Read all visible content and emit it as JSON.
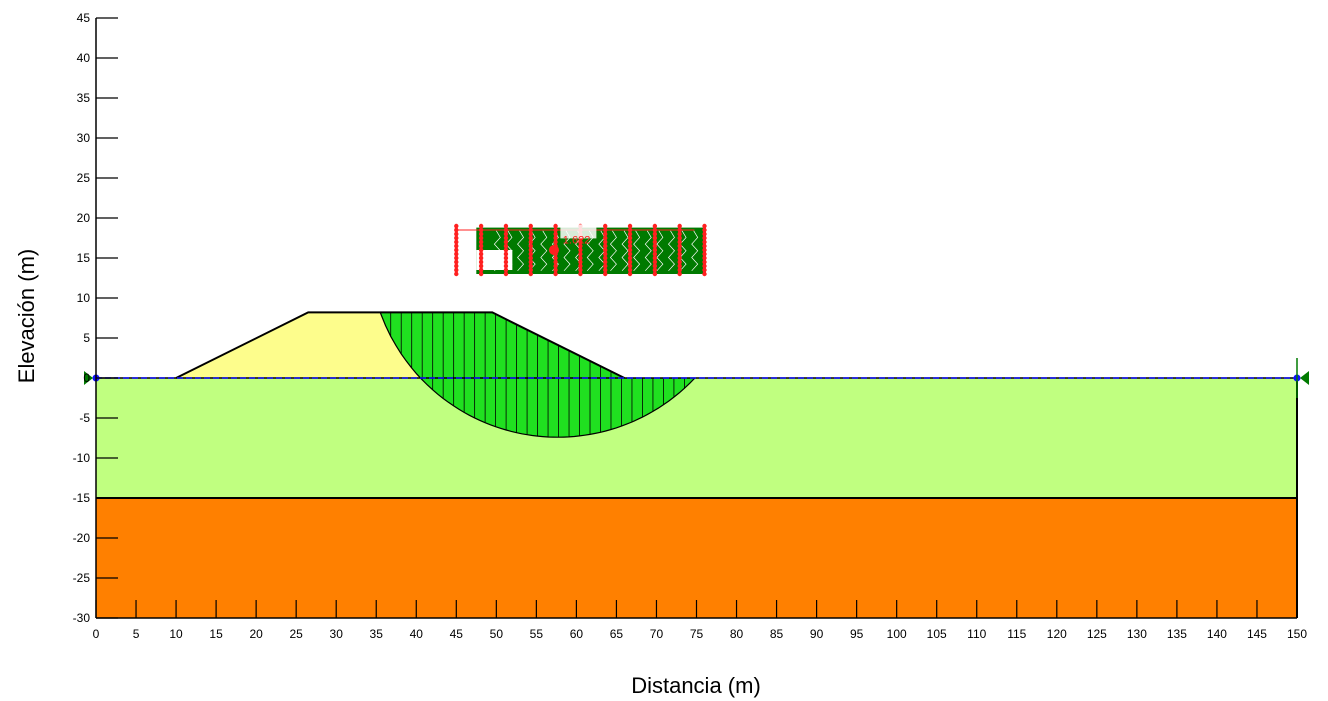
{
  "chart_data": {
    "type": "slope-stability-section",
    "xlabel": "Distancia (m)",
    "ylabel": "Elevación (m)",
    "xlim": [
      0,
      150
    ],
    "ylim": [
      -30,
      45
    ],
    "x_ticks": [
      0,
      5,
      10,
      15,
      20,
      25,
      30,
      35,
      40,
      45,
      50,
      55,
      60,
      65,
      70,
      75,
      80,
      85,
      90,
      95,
      100,
      105,
      110,
      115,
      120,
      125,
      130,
      135,
      140,
      145,
      150
    ],
    "y_ticks": [
      45,
      40,
      35,
      30,
      25,
      20,
      15,
      10,
      5,
      0,
      -5,
      -10,
      -15,
      -20,
      -25,
      -30
    ],
    "factor_of_safety": "1.622",
    "colors": {
      "embankment": "#fdfd8c",
      "upper_layer": "#c0ff80",
      "lower_layer": "#ff8000",
      "slip_mass": "#20e020",
      "grid_mark": "#ff2020",
      "contour": "#007a00",
      "water_table": "#1010ff",
      "boundary": "#000000"
    },
    "regions": [
      {
        "name": "embankment",
        "points": [
          [
            10,
            0
          ],
          [
            26.5,
            8.2
          ],
          [
            49.5,
            8.2
          ],
          [
            66,
            0
          ]
        ]
      },
      {
        "name": "upper_layer",
        "points": [
          [
            0,
            0
          ],
          [
            150,
            0
          ],
          [
            150,
            -15
          ],
          [
            0,
            -15
          ]
        ]
      },
      {
        "name": "lower_layer",
        "points": [
          [
            0,
            -15
          ],
          [
            150,
            -15
          ],
          [
            150,
            -30
          ],
          [
            0,
            -30
          ]
        ]
      }
    ],
    "slip_surface": {
      "entry": [
        35.5,
        8.2
      ],
      "exit": [
        74.8,
        0
      ],
      "lowest_elevation": -7.4
    },
    "water_table_elevation": 0,
    "search_grid": {
      "x_range": [
        45,
        76
      ],
      "y_range": [
        13,
        19
      ],
      "columns": 11
    }
  }
}
